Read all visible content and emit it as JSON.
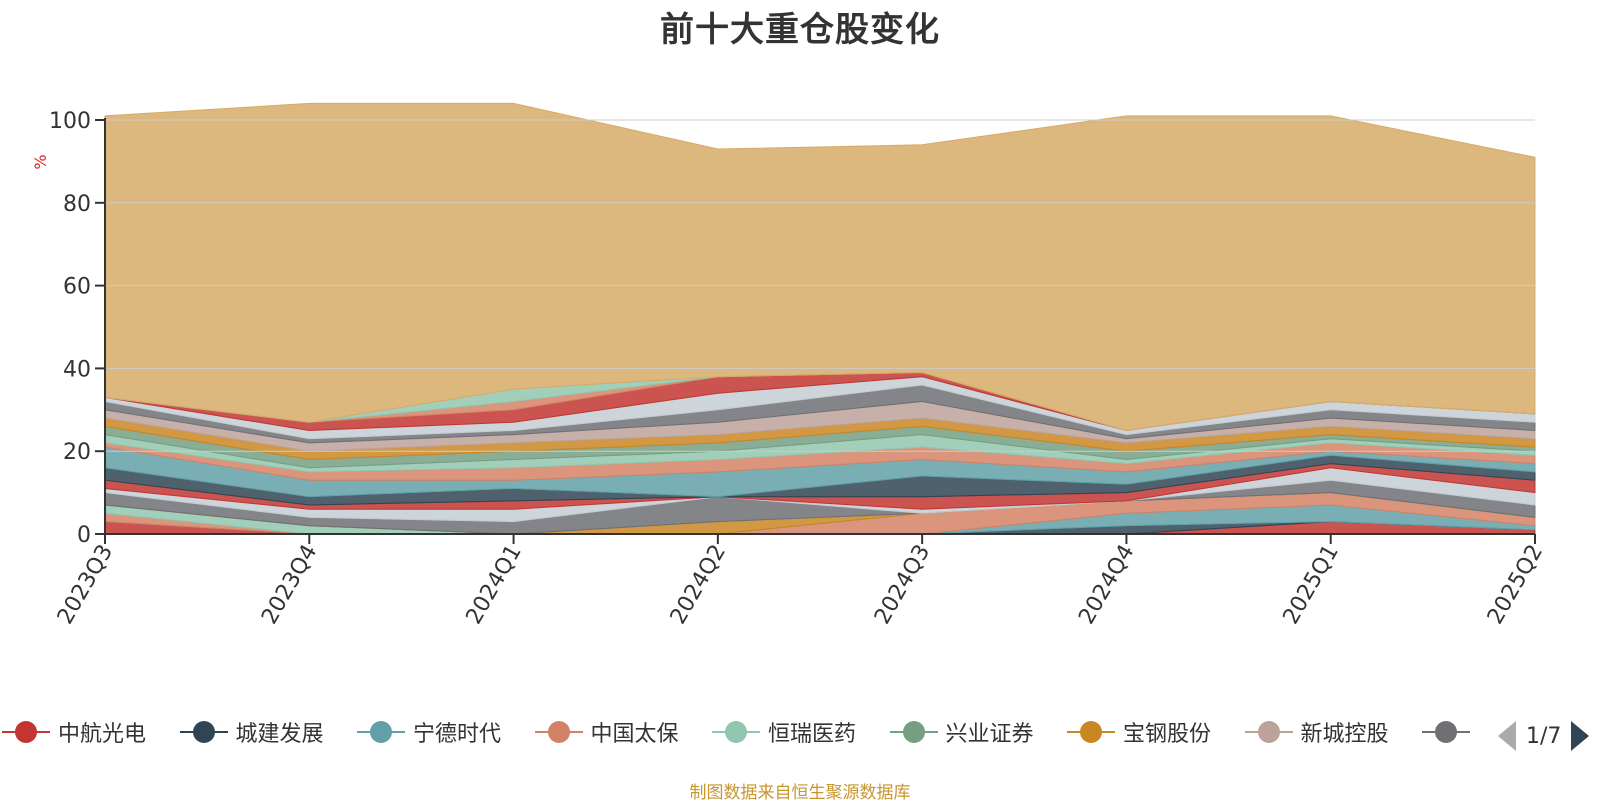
{
  "chart_data": {
    "type": "area",
    "stacked": true,
    "title": "前十大重仓股变化",
    "ylabel": "%",
    "ylim": [
      0,
      100
    ],
    "yticks": [
      0,
      20,
      40,
      60,
      80,
      100
    ],
    "grid": true,
    "legend_position": "bottom",
    "x": [
      "2023Q3",
      "2023Q4",
      "2024Q1",
      "2024Q2",
      "2024Q3",
      "2024Q4",
      "2025Q1",
      "2025Q2"
    ],
    "series": [
      {
        "name": "中航光电",
        "color": "#c23531",
        "values": [
          3,
          0,
          0,
          0,
          0,
          0,
          3,
          1
        ]
      },
      {
        "name": "城建发展",
        "color": "#2f4554",
        "values": [
          0,
          0,
          0,
          0,
          0,
          2,
          0,
          0
        ]
      },
      {
        "name": "宁德时代",
        "color": "#61a0a8",
        "values": [
          0,
          0,
          0,
          0,
          0,
          3,
          4,
          1
        ]
      },
      {
        "name": "中国太保",
        "color": "#d48265",
        "values": [
          2,
          0,
          0,
          0,
          5,
          3,
          3,
          2
        ]
      },
      {
        "name": "恒瑞医药",
        "color": "#91c7ae",
        "values": [
          2,
          2,
          0,
          0,
          0,
          0,
          0,
          0
        ]
      },
      {
        "name": "兴业证券",
        "color": "#749f83",
        "values": [
          0,
          0,
          0,
          0,
          0,
          0,
          0,
          0
        ]
      },
      {
        "name": "宝钢股份",
        "color": "#ca8622",
        "values": [
          0,
          0,
          0,
          3,
          0,
          0,
          0,
          0
        ]
      },
      {
        "name": "新城控股",
        "color": "#bda29a",
        "values": [
          0,
          0,
          0,
          0,
          0,
          0,
          0,
          0
        ]
      },
      {
        "name": "",
        "color": "#6e7074",
        "values": [
          3,
          2,
          3,
          6,
          0,
          0,
          3,
          3
        ]
      },
      {
        "name": "",
        "color": "#c4ccd3",
        "values": [
          1,
          2,
          3,
          0,
          1,
          0,
          3,
          3
        ]
      },
      {
        "name": "",
        "color": "#c23531",
        "values": [
          2,
          1,
          2,
          0,
          3,
          2,
          1,
          3
        ]
      },
      {
        "name": "",
        "color": "#2f4554",
        "values": [
          3,
          2,
          3,
          0,
          5,
          2,
          2,
          2
        ]
      },
      {
        "name": "",
        "color": "#61a0a8",
        "values": [
          5,
          4,
          2,
          6,
          4,
          3,
          1,
          2
        ]
      },
      {
        "name": "",
        "color": "#d48265",
        "values": [
          1,
          2,
          3,
          3,
          3,
          2,
          2,
          2
        ]
      },
      {
        "name": "",
        "color": "#91c7ae",
        "values": [
          2,
          1,
          2,
          2,
          3,
          1,
          1,
          1
        ]
      },
      {
        "name": "",
        "color": "#749f83",
        "values": [
          2,
          2,
          2,
          2,
          2,
          2,
          1,
          1
        ]
      },
      {
        "name": "",
        "color": "#ca8622",
        "values": [
          2,
          2,
          2,
          2,
          2,
          2,
          2,
          2
        ]
      },
      {
        "name": "",
        "color": "#bda29a",
        "values": [
          2,
          2,
          2,
          3,
          4,
          1,
          2,
          2
        ]
      },
      {
        "name": "",
        "color": "#6e7074",
        "values": [
          2,
          1,
          1,
          3,
          4,
          1,
          2,
          2
        ]
      },
      {
        "name": "",
        "color": "#c4ccd3",
        "values": [
          1,
          2,
          2,
          4,
          2,
          1,
          2,
          2
        ]
      },
      {
        "name": "",
        "color": "#c23531",
        "values": [
          0,
          2,
          3,
          4,
          1,
          0,
          0,
          0
        ]
      },
      {
        "name": "",
        "color": "#d48265",
        "values": [
          0,
          0,
          2,
          0,
          0,
          0,
          0,
          0
        ]
      },
      {
        "name": "",
        "color": "#91c7ae",
        "values": [
          0,
          0,
          3,
          0,
          0,
          0,
          0,
          0
        ]
      },
      {
        "name": "",
        "color": "#d7ab67",
        "values": [
          68,
          77,
          69,
          55,
          55,
          76,
          69,
          62
        ]
      }
    ]
  },
  "legend": {
    "items": [
      {
        "label": "中航光电",
        "color": "#c23531"
      },
      {
        "label": "城建发展",
        "color": "#2f4554"
      },
      {
        "label": "宁德时代",
        "color": "#61a0a8"
      },
      {
        "label": "中国太保",
        "color": "#d48265"
      },
      {
        "label": "恒瑞医药",
        "color": "#91c7ae"
      },
      {
        "label": "兴业证券",
        "color": "#749f83"
      },
      {
        "label": "宝钢股份",
        "color": "#ca8622"
      },
      {
        "label": "新城控股",
        "color": "#bda29a"
      },
      {
        "label": "",
        "color": "#6e7074"
      }
    ],
    "page_indicator": "1/7"
  },
  "footer": {
    "source_note": "制图数据来自恒生聚源数据库"
  }
}
